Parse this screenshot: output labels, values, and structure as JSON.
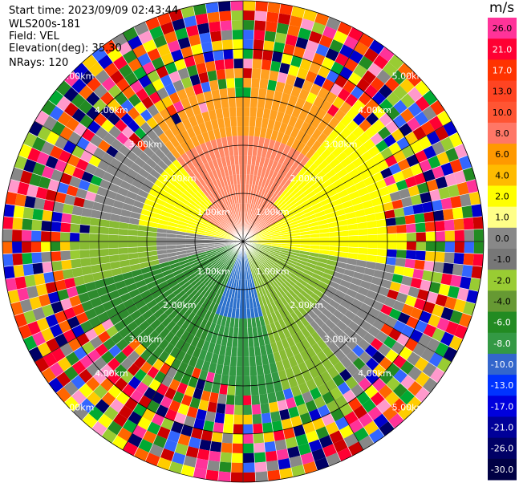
{
  "info": {
    "start_time": "Start time: 2023/09/09 02:43:44",
    "instrument": "WLS200s-181",
    "field": "Field: VEL",
    "elevation": "Elevation(deg): 35.30",
    "nrays": "NRays: 120"
  },
  "range_labels": [
    "1.00km",
    "2.00km",
    "3.00km",
    "4.00km",
    "5.00km"
  ],
  "colorbar": {
    "unit": "m/s",
    "ticks": [
      "26.0",
      "21.0",
      "17.0",
      "13.0",
      "10.0",
      "8.0",
      "6.0",
      "4.0",
      "2.0",
      "1.0",
      "0.0",
      "-1.0",
      "-2.0",
      "-4.0",
      "-6.0",
      "-8.0",
      "-10.0",
      "-13.0",
      "-17.0",
      "-21.0",
      "-26.0",
      "-30.0"
    ],
    "colors": [
      "#ff3399",
      "#ff0033",
      "#ff3300",
      "#ff4422",
      "#ff5533",
      "#ff7766",
      "#ff9900",
      "#ffbb00",
      "#ffff00",
      "#ffff88",
      "#888888",
      "#777777",
      "#99cc33",
      "#669933",
      "#228b22",
      "#339944",
      "#3366cc",
      "#0033ff",
      "#0000dd",
      "#000099",
      "#000066",
      "#000044"
    ]
  },
  "palette": {
    "noise": [
      "#ff0033",
      "#ff3399",
      "#ffff00",
      "#0000cc",
      "#00aa33",
      "#ff6600",
      "#000066",
      "#ff99cc",
      "#228b22",
      "#ffcc00",
      "#cc0000",
      "#3366ff",
      "#888888",
      "#ff3300",
      "#99cc33"
    ],
    "near_north": "#ff8866",
    "north": "#ffa020",
    "east": "#ffff00",
    "west_gray": "#8a8a8a",
    "south": "#339944",
    "south_center": "#2b70cc",
    "southwest": "#2e8b2e",
    "southeast": "#88bb33"
  }
}
